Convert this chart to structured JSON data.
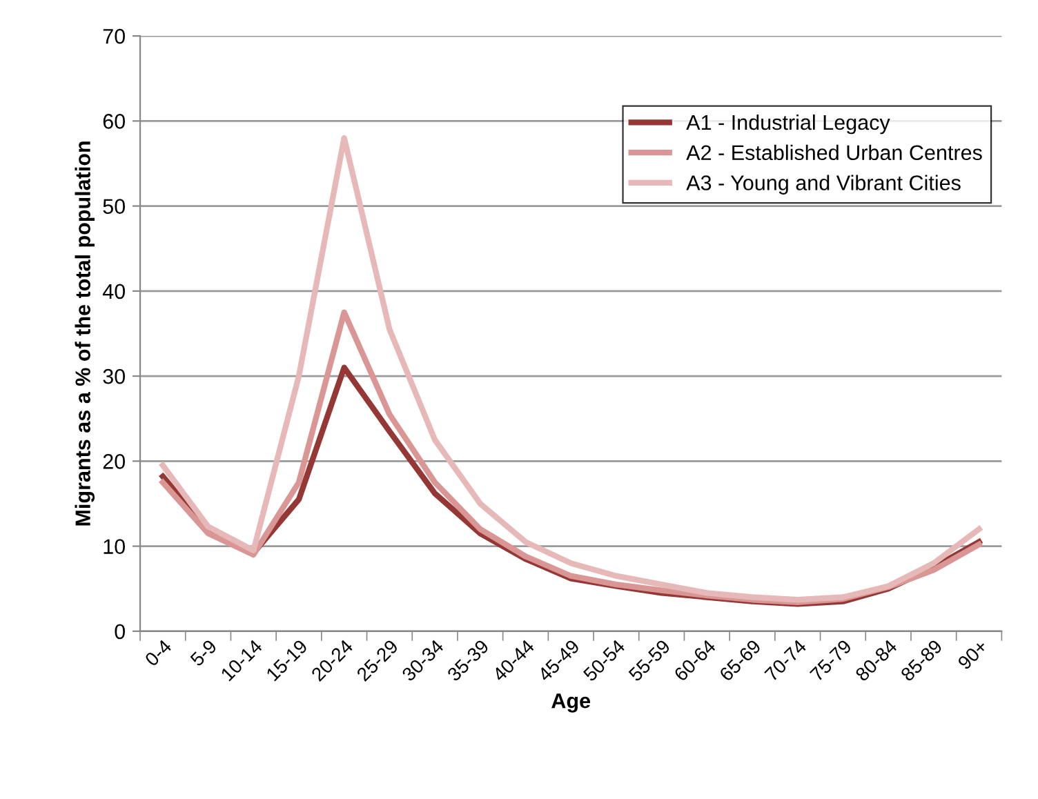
{
  "chart_data": {
    "type": "line",
    "xlabel": "Age",
    "ylabel": "Migrants as a % of the total population",
    "categories": [
      "0-4",
      "5-9",
      "10-14",
      "15-19",
      "20-24",
      "25-29",
      "30-34",
      "35-39",
      "40-44",
      "45-49",
      "50-54",
      "55-59",
      "60-64",
      "65-69",
      "70-74",
      "75-79",
      "80-84",
      "85-89",
      "90+"
    ],
    "series": [
      {
        "name": "A1 - Industrial Legacy",
        "color": "#953735",
        "values": [
          18.2,
          11.8,
          9.2,
          15.5,
          31,
          23.5,
          16.2,
          11.5,
          8.5,
          6.2,
          5.3,
          4.5,
          4.0,
          3.5,
          3.2,
          3.5,
          5.0,
          7.5,
          10.5
        ]
      },
      {
        "name": "A2 - Established Urban Centres",
        "color": "#d99694",
        "values": [
          17.5,
          11.5,
          9.0,
          17.5,
          37.5,
          25.5,
          17.5,
          12.0,
          8.8,
          6.5,
          5.5,
          4.8,
          4.2,
          3.7,
          3.4,
          3.8,
          5.2,
          7.2,
          10.2
        ]
      },
      {
        "name": "A3 - Young and Vibrant Cities",
        "color": "#e6b9b8",
        "values": [
          19.5,
          12.3,
          9.5,
          30,
          58,
          35.5,
          22.5,
          15,
          10.5,
          8.0,
          6.5,
          5.5,
          4.5,
          4.0,
          3.7,
          4.0,
          5.3,
          8.0,
          12.0
        ]
      }
    ],
    "ylim": [
      0,
      70
    ],
    "yticks": [
      0,
      10,
      20,
      30,
      40,
      50,
      60,
      70
    ],
    "grid": "y",
    "legend": "top right",
    "marker": "none",
    "line_style": "solid"
  }
}
